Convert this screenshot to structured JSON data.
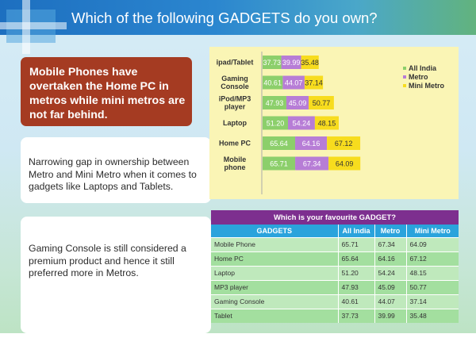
{
  "header": {
    "title": "Which of the following GADGETS  do you own?"
  },
  "left_panel": {
    "headline": "Mobile Phones have overtaken the Home PC in metros while mini metros are not far behind.",
    "note_1": "Narrowing gap in ownership between Metro and Mini Metro when it comes to gadgets like Laptops and Tablets.",
    "note_2": "Gaming Console is still considered a premium product and hence it still preferred more in Metros."
  },
  "chart_data": {
    "type": "bar",
    "stacked": true,
    "orientation": "horizontal",
    "categories": [
      "ipad/Tablet",
      "Gaming Console",
      "iPod/MP3 player",
      "Laptop",
      "Home PC",
      "Mobile phone"
    ],
    "category_lines": [
      [
        "ipad/Tablet"
      ],
      [
        "Gaming",
        "Console"
      ],
      [
        "iPod/MP3",
        "player"
      ],
      [
        "Laptop"
      ],
      [
        "Home PC"
      ],
      [
        "Mobile",
        "phone"
      ]
    ],
    "series": [
      {
        "name": "All India",
        "color": "#8ccf6b",
        "values": [
          37.73,
          40.61,
          47.93,
          51.2,
          65.64,
          65.71
        ]
      },
      {
        "name": "Metro",
        "color": "#b77dd6",
        "values": [
          39.99,
          44.07,
          45.09,
          54.24,
          64.16,
          67.34
        ]
      },
      {
        "name": "Mini Metro",
        "color": "#f7dc1e",
        "values": [
          35.48,
          37.14,
          50.77,
          48.15,
          67.12,
          64.09
        ]
      }
    ],
    "legend_position": "right",
    "grid": false
  },
  "table": {
    "title": "Which is your favourite GADGET?",
    "columns": [
      "GADGETS",
      "All India",
      "Metro",
      "Mini Metro"
    ],
    "rows": [
      [
        "Mobile Phone",
        "65.71",
        "67.34",
        "64.09"
      ],
      [
        "Home PC",
        "65.64",
        "64.16",
        "67.12"
      ],
      [
        "Laptop",
        "51.20",
        "54.24",
        "48.15"
      ],
      [
        "MP3 player",
        "47.93",
        "45.09",
        "50.77"
      ],
      [
        "Gaming Console",
        "40.61",
        "44.07",
        "37.14"
      ],
      [
        "Tablet",
        "37.73",
        "39.99",
        "35.48"
      ]
    ]
  }
}
